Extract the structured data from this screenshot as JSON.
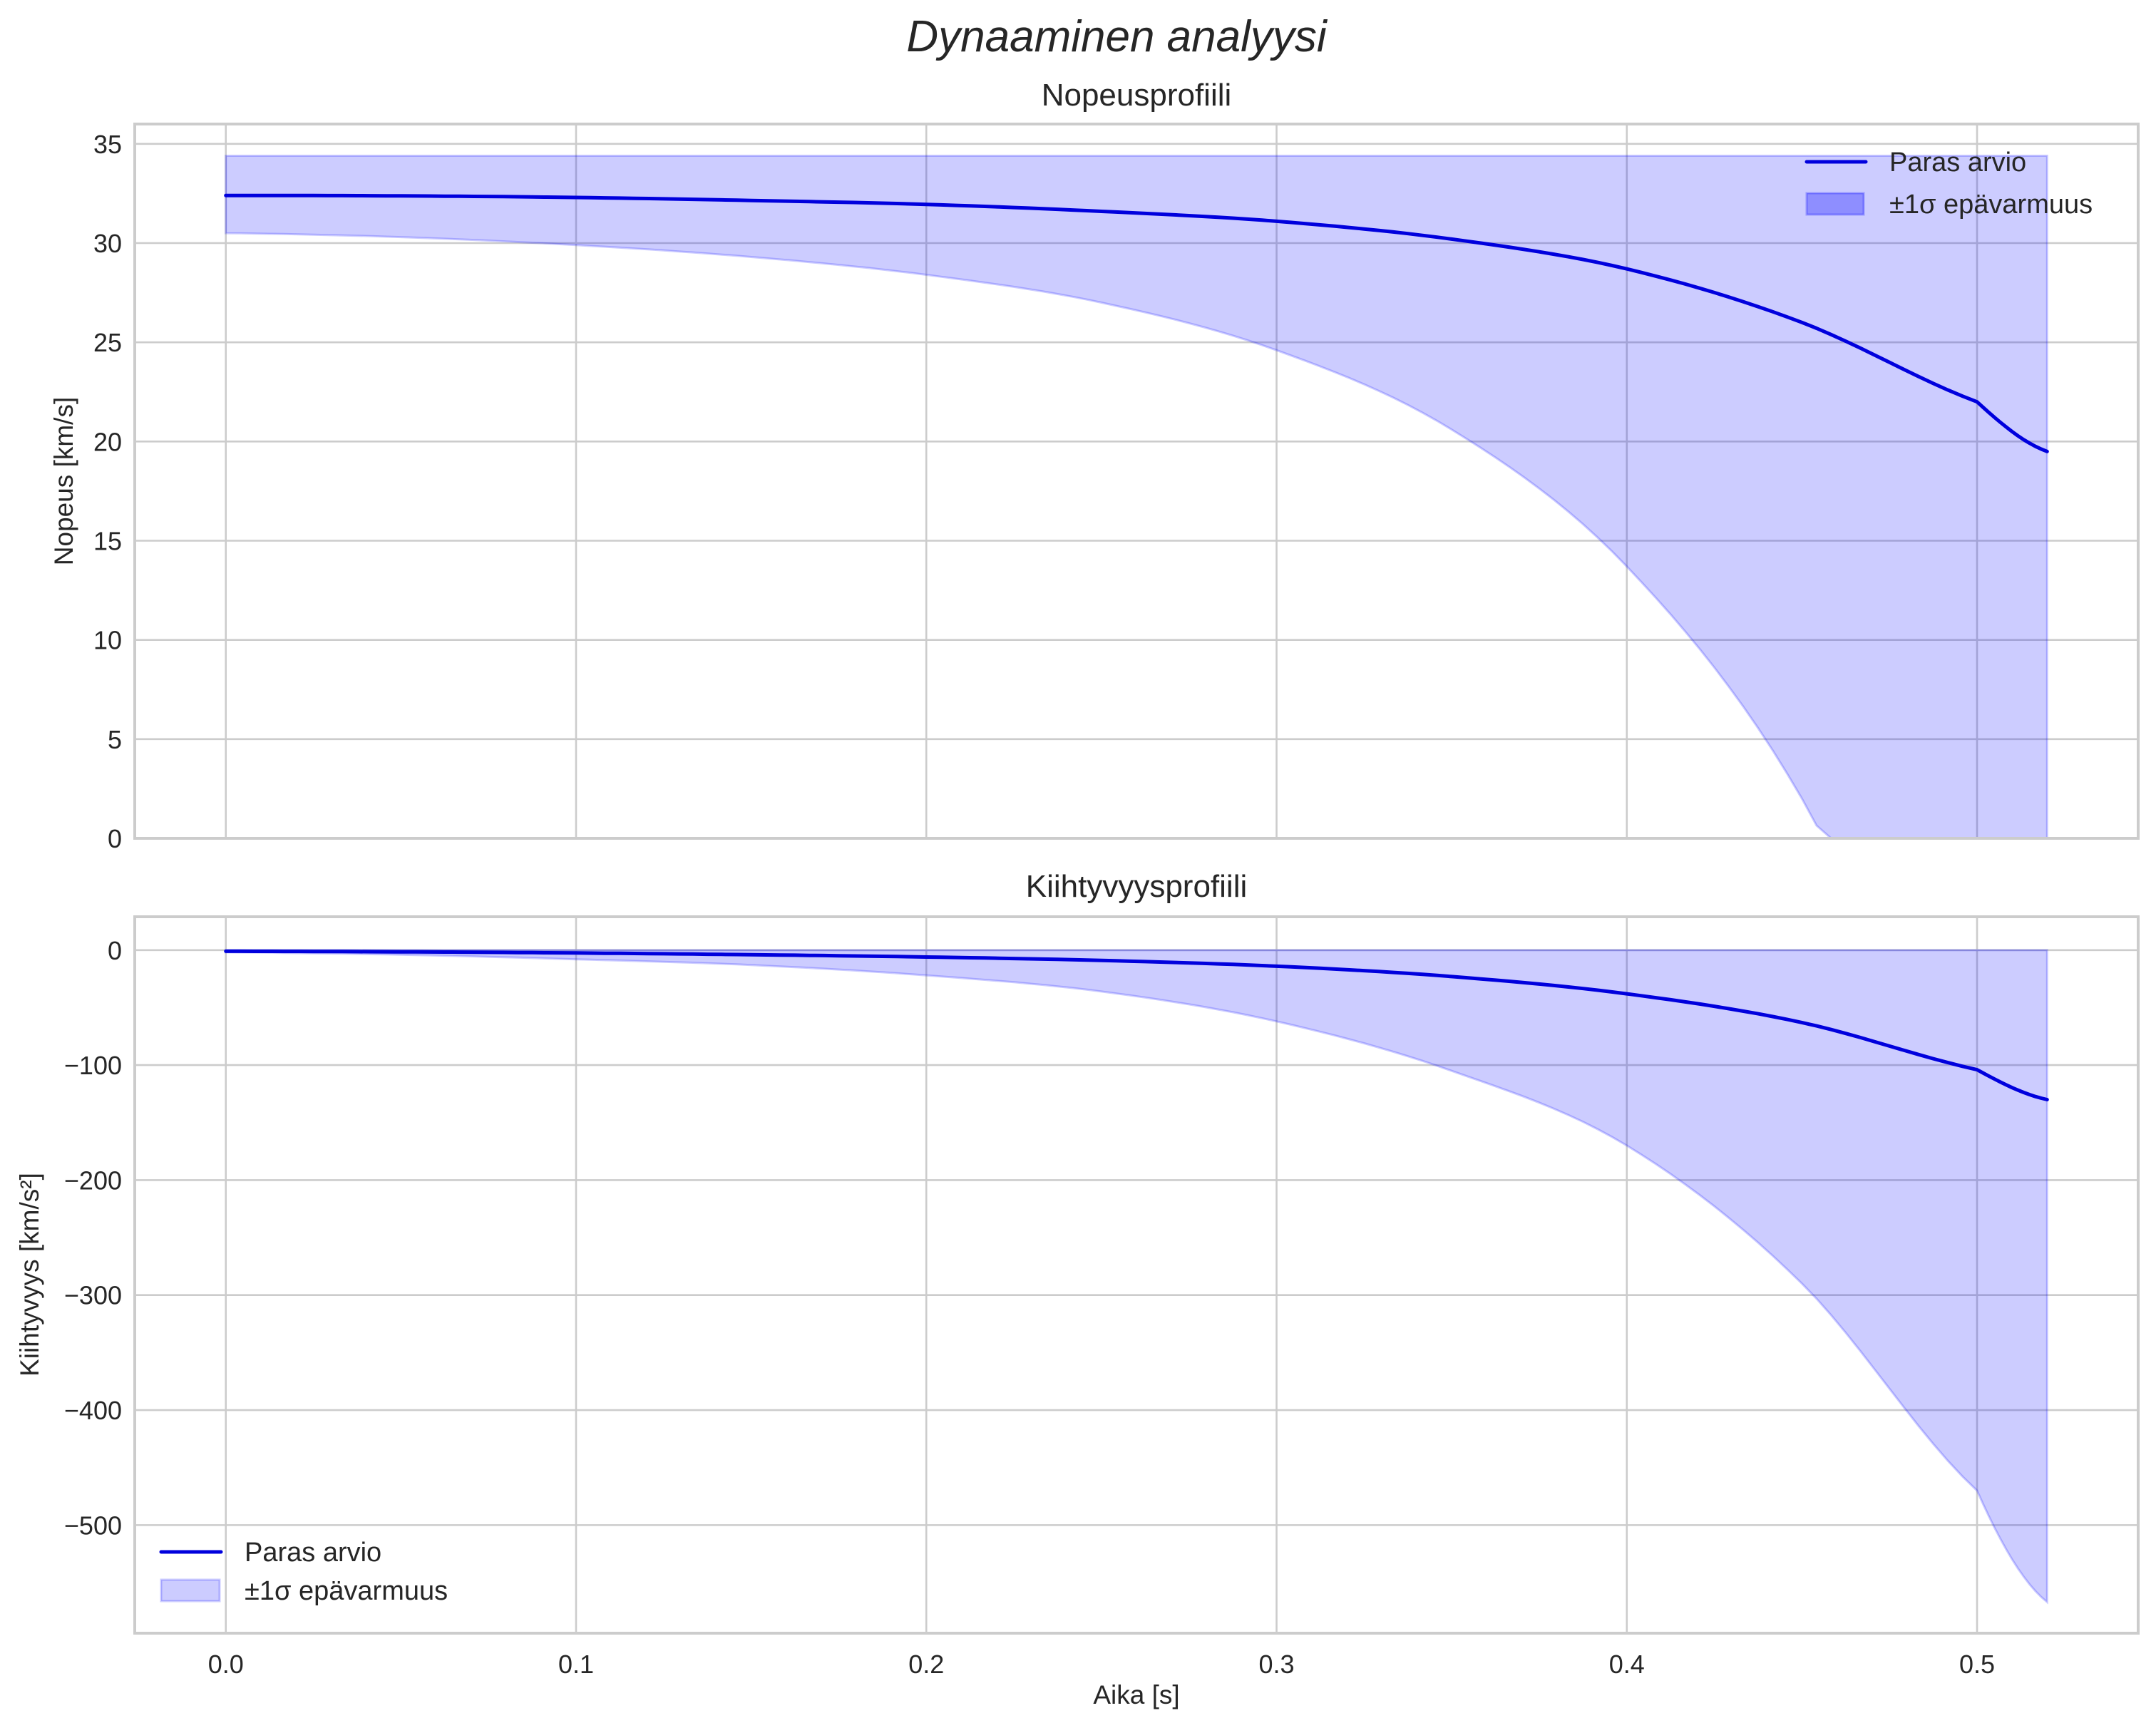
{
  "figure": {
    "suptitle": "Dynaaminen analyysi",
    "xlabel": "Aika [s]"
  },
  "colors": {
    "line": "#0000dd",
    "band": "#0000ff",
    "band_alpha": 0.2,
    "grid": "#cccccc",
    "text": "#262626"
  },
  "chart_data": [
    {
      "type": "line",
      "title": "Nopeusprofiili",
      "xlabel": "",
      "ylabel": "Nopeus [km/s]",
      "xlim": [
        -0.026,
        0.546
      ],
      "ylim": [
        0,
        36
      ],
      "grid": true,
      "legend_position": "upper right",
      "xticks": [
        "0.0",
        "0.1",
        "0.2",
        "0.3",
        "0.4",
        "0.5"
      ],
      "yticks": [
        "0",
        "5",
        "10",
        "15",
        "20",
        "25",
        "30",
        "35"
      ],
      "x": [
        0.0,
        0.05,
        0.1,
        0.15,
        0.2,
        0.25,
        0.3,
        0.35,
        0.4,
        0.45,
        0.5,
        0.52
      ],
      "series": [
        {
          "name": "Paras arvio",
          "kind": "line",
          "values": [
            32.4,
            32.38,
            32.3,
            32.15,
            31.95,
            31.6,
            31.1,
            30.2,
            28.7,
            26.0,
            22.0,
            19.5
          ]
        },
        {
          "name": "±1σ epävarmuus",
          "kind": "band",
          "upper": [
            34.4,
            34.4,
            34.4,
            34.4,
            34.4,
            34.4,
            34.4,
            34.4,
            34.4,
            34.4,
            34.4,
            34.4
          ],
          "lower": [
            30.5,
            30.3,
            29.9,
            29.3,
            28.4,
            27.0,
            24.6,
            20.6,
            13.7,
            2.0,
            -17.0,
            -27.0
          ]
        }
      ],
      "legend": [
        "Paras arvio",
        "±1σ epävarmuus"
      ]
    },
    {
      "type": "line",
      "title": "Kiihtyvyysprofiili",
      "xlabel": "Aika [s]",
      "ylabel": "Kiihtyvyys [km/s²]",
      "xlim": [
        -0.026,
        0.546
      ],
      "ylim": [
        -594,
        29
      ],
      "grid": true,
      "legend_position": "lower left",
      "xticks": [
        "0.0",
        "0.1",
        "0.2",
        "0.3",
        "0.4",
        "0.5"
      ],
      "yticks": [
        "0",
        "−100",
        "−200",
        "−300",
        "−400",
        "−500"
      ],
      "x": [
        0.0,
        0.05,
        0.1,
        0.15,
        0.2,
        0.25,
        0.3,
        0.35,
        0.4,
        0.45,
        0.5,
        0.52
      ],
      "series": [
        {
          "name": "Paras arvio",
          "kind": "line",
          "values": [
            -1,
            -1.5,
            -2.5,
            -4,
            -6,
            -9,
            -14,
            -23,
            -38,
            -63,
            -104,
            -130
          ]
        },
        {
          "name": "±1σ epävarmuus",
          "kind": "band",
          "upper": [
            0,
            0,
            0,
            0,
            0,
            0,
            0,
            0,
            0,
            0,
            0,
            0
          ],
          "lower": [
            -2,
            -4,
            -8,
            -13,
            -22,
            -36,
            -62,
            -105,
            -170,
            -290,
            -470,
            -567
          ]
        }
      ],
      "legend": [
        "Paras arvio",
        "±1σ epävarmuus"
      ]
    }
  ]
}
